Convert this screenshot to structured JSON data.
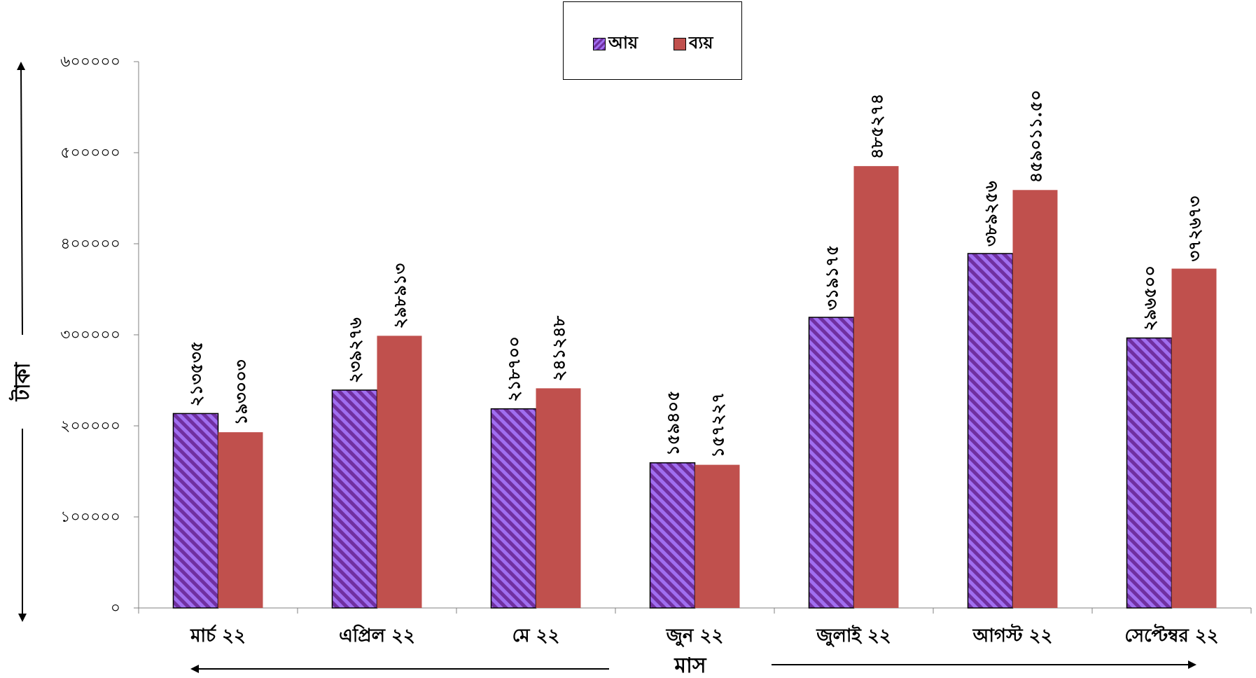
{
  "chart_data": {
    "type": "bar",
    "title": "",
    "xlabel": "মাস",
    "ylabel": "টাকা",
    "ylim": [
      0,
      600000
    ],
    "yticks": [
      0,
      100000,
      200000,
      300000,
      400000,
      500000,
      600000
    ],
    "ytick_labels": [
      "০",
      "১০০০০০",
      "২০০০০০",
      "৩০০০০০",
      "৪০০০০০",
      "৫০০০০০",
      "৬০০০০০"
    ],
    "categories": [
      "মার্চ ২২",
      "এপ্রিল ২২",
      "মে ২২",
      "জুন ২২",
      "জুলাই ২২",
      "আগস্ট ২২",
      "সেপ্টেম্বর ২২"
    ],
    "legend_position": "top-center",
    "grid": false,
    "series": [
      {
        "name": "আয়",
        "color": "#7030a0",
        "pattern": "diagonal-stripes",
        "values": [
          213535,
          239276,
          218700,
          159405,
          319175,
          389256,
          296500
        ],
        "labels": [
          "২১৩৫৩৫",
          "২৩৯২৭৬",
          "২১৮৭০০",
          "১৫৯৪০৫",
          "৩১৯১৭৫",
          "৩৮৯২৫৬",
          "২৯৬৫০০"
        ]
      },
      {
        "name": "ব্যয়",
        "color": "#c0504d",
        "pattern": "solid",
        "values": [
          193003,
          298913,
          241248,
          157227,
          485274,
          459011.5,
          372673
        ],
        "labels": [
          "১৯৩০০৩",
          "২৯৮৯১৩",
          "২৪১২৪৮",
          "১৫৭২২৭",
          "৪৮৫২৭৪",
          "৪৫৯০১১.৫০",
          "৩৭২৬৭৩"
        ]
      }
    ]
  }
}
